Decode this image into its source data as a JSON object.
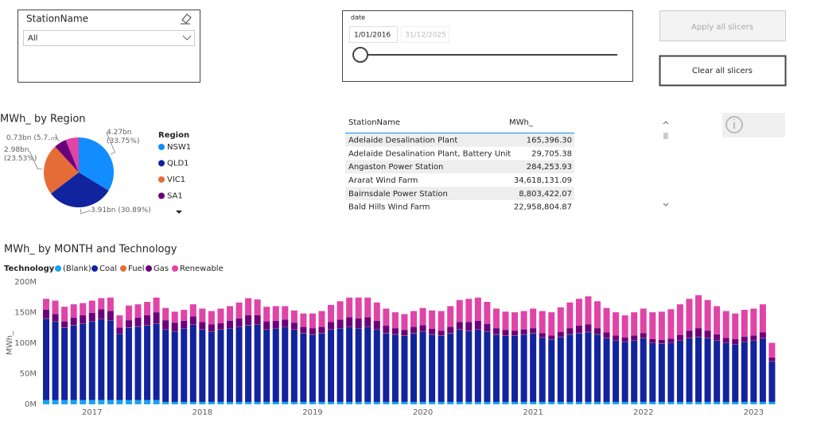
{
  "station_slicer": {
    "title": "StationName",
    "selected": "All"
  },
  "date_slicer": {
    "title": "date",
    "start": "1/01/2016",
    "end": "31/12/2025"
  },
  "buttons": {
    "apply": "Apply all slicers",
    "clear": "Clear all slicers"
  },
  "table": {
    "header": [
      "StationName",
      "MWh_"
    ],
    "rows": [
      [
        "Adelaide Desalination Plant",
        "165,396.30"
      ],
      [
        "Adelaide Desalination Plant, Battery Unit",
        "29,705.38"
      ],
      [
        "Angaston Power Station",
        "284,253.93"
      ],
      [
        "Ararat Wind Farm",
        "34,618,131.09"
      ],
      [
        "Bairnsdale Power Station",
        "8,803,422.07"
      ],
      [
        "Bald Hills Wind Farm",
        "22,958,804.87"
      ]
    ]
  },
  "chart_data": [
    {
      "type": "pie",
      "title": "MWh_ by Region",
      "legend_title": "Region",
      "categories": [
        "NSW1",
        "QLD1",
        "VIC1",
        "SA1",
        null
      ],
      "values": [
        4.27,
        3.91,
        2.98,
        0.73,
        0.77
      ],
      "value_labels": [
        "4.27bn (33.75%)",
        "3.91bn (30.89%)",
        "2.98bn (23.53%)",
        "0.73bn (5.7...)",
        null
      ],
      "colors": [
        "#118DFF",
        "#12239E",
        "#E66C37",
        "#6B007B",
        "#E044A7"
      ]
    },
    {
      "type": "stacked_bar",
      "title": "MWh_ by MONTH and Technology",
      "legend_title": "Technology",
      "y_label": "MWh_",
      "ylim": [
        0,
        200
      ],
      "yticks": [
        {
          "value": 0,
          "label": "0M"
        },
        {
          "value": 50,
          "label": "50M"
        },
        {
          "value": 100,
          "label": "100M"
        },
        {
          "value": 150,
          "label": "150M"
        },
        {
          "value": 200,
          "label": "200M"
        }
      ],
      "grid": false,
      "categories": [
        null,
        null,
        null,
        null,
        null,
        "2017",
        null,
        null,
        null,
        null,
        null,
        null,
        null,
        null,
        null,
        null,
        null,
        "2018",
        null,
        null,
        null,
        null,
        null,
        null,
        null,
        null,
        null,
        null,
        null,
        "2019",
        null,
        null,
        null,
        null,
        null,
        null,
        null,
        null,
        null,
        null,
        null,
        "2020",
        null,
        null,
        null,
        null,
        null,
        null,
        null,
        null,
        null,
        null,
        null,
        "2021",
        null,
        null,
        null,
        null,
        null,
        null,
        null,
        null,
        null,
        null,
        null,
        "2022",
        null,
        null,
        null,
        null,
        null,
        null,
        null,
        null,
        null,
        null,
        null,
        "2023",
        null,
        null
      ],
      "series": [
        {
          "name": "(Blank)",
          "color": "#1AA3F5",
          "values": [
            7,
            7,
            7,
            7,
            7,
            7,
            7,
            7,
            7,
            7,
            7,
            7,
            7,
            4,
            4,
            4,
            4,
            4,
            4,
            4,
            4,
            4,
            4,
            4,
            4,
            4,
            4,
            4,
            4,
            4,
            4,
            4,
            4,
            4,
            4,
            4,
            4,
            4,
            4,
            4,
            4,
            4,
            4,
            4,
            4,
            4,
            4,
            4,
            4,
            4,
            4,
            4,
            4,
            4,
            4,
            4,
            4,
            4,
            4,
            4,
            4,
            4,
            4,
            4,
            4,
            4,
            4,
            4,
            4,
            4,
            4,
            4,
            4,
            4,
            4,
            4,
            4,
            4,
            4,
            4
          ]
        },
        {
          "name": "Coal",
          "color": "#12239E",
          "values": [
            133,
            128,
            118,
            122,
            125,
            128,
            132,
            130,
            108,
            118,
            120,
            122,
            125,
            118,
            115,
            120,
            126,
            118,
            115,
            118,
            120,
            122,
            125,
            126,
            118,
            120,
            122,
            118,
            112,
            110,
            112,
            118,
            120,
            122,
            120,
            122,
            118,
            112,
            110,
            108,
            112,
            115,
            110,
            108,
            112,
            118,
            116,
            118,
            115,
            110,
            108,
            108,
            110,
            112,
            105,
            102,
            106,
            110,
            112,
            114,
            110,
            104,
            100,
            98,
            100,
            104,
            96,
            95,
            96,
            100,
            104,
            106,
            104,
            100,
            96,
            94,
            98,
            100,
            104,
            66
          ]
        },
        {
          "name": "Fuel",
          "color": "#E66C37",
          "values": [
            0.5,
            0.5,
            0.5,
            0.5,
            0.5,
            0.5,
            0.5,
            0.5,
            0.5,
            0.5,
            0.5,
            0.5,
            0.5,
            0.5,
            0.5,
            0.5,
            0.5,
            0.5,
            0.5,
            0.5,
            0.5,
            0.5,
            0.5,
            0.5,
            0.5,
            0.5,
            0.5,
            0.5,
            0.5,
            0.5,
            0.5,
            0.5,
            0.5,
            0.5,
            0.5,
            0.5,
            0.5,
            0.5,
            0.5,
            0.5,
            0.5,
            0.5,
            0.5,
            0.5,
            0.5,
            0.5,
            0.5,
            0.5,
            0.5,
            0.5,
            0.5,
            0.5,
            0.5,
            0.5,
            0.5,
            0.5,
            0.5,
            0.5,
            0.5,
            0.5,
            0.5,
            0.5,
            0.5,
            0.5,
            0.5,
            0.5,
            0.5,
            0.5,
            0.5,
            0.5,
            0.5,
            0.5,
            0.5,
            0.5,
            0.5,
            0.5,
            0.5,
            0.5,
            0.5,
            0.5
          ]
        },
        {
          "name": "Gas",
          "color": "#6B007B",
          "values": [
            14,
            12,
            10,
            12,
            13,
            14,
            16,
            15,
            10,
            12,
            14,
            16,
            18,
            15,
            14,
            12,
            13,
            12,
            11,
            10,
            12,
            14,
            16,
            15,
            13,
            12,
            12,
            11,
            10,
            10,
            10,
            12,
            14,
            16,
            16,
            16,
            14,
            12,
            10,
            9,
            10,
            10,
            9,
            8,
            10,
            12,
            14,
            14,
            12,
            10,
            9,
            8,
            8,
            8,
            7,
            6,
            8,
            10,
            12,
            12,
            10,
            9,
            8,
            7,
            8,
            8,
            6,
            6,
            7,
            9,
            12,
            14,
            12,
            10,
            8,
            8,
            8,
            8,
            9,
            6
          ]
        },
        {
          "name": "Renewable",
          "color": "#E044A7",
          "values": [
            18,
            22,
            24,
            22,
            20,
            20,
            18,
            22,
            20,
            24,
            22,
            22,
            24,
            20,
            18,
            18,
            20,
            22,
            22,
            24,
            24,
            26,
            28,
            26,
            24,
            24,
            22,
            20,
            22,
            24,
            26,
            28,
            30,
            32,
            34,
            32,
            30,
            28,
            26,
            26,
            26,
            28,
            30,
            32,
            34,
            36,
            38,
            38,
            36,
            32,
            30,
            30,
            30,
            32,
            36,
            38,
            40,
            42,
            44,
            46,
            44,
            40,
            38,
            36,
            38,
            40,
            44,
            46,
            48,
            50,
            52,
            54,
            50,
            46,
            44,
            42,
            44,
            44,
            46,
            24
          ]
        }
      ]
    }
  ]
}
